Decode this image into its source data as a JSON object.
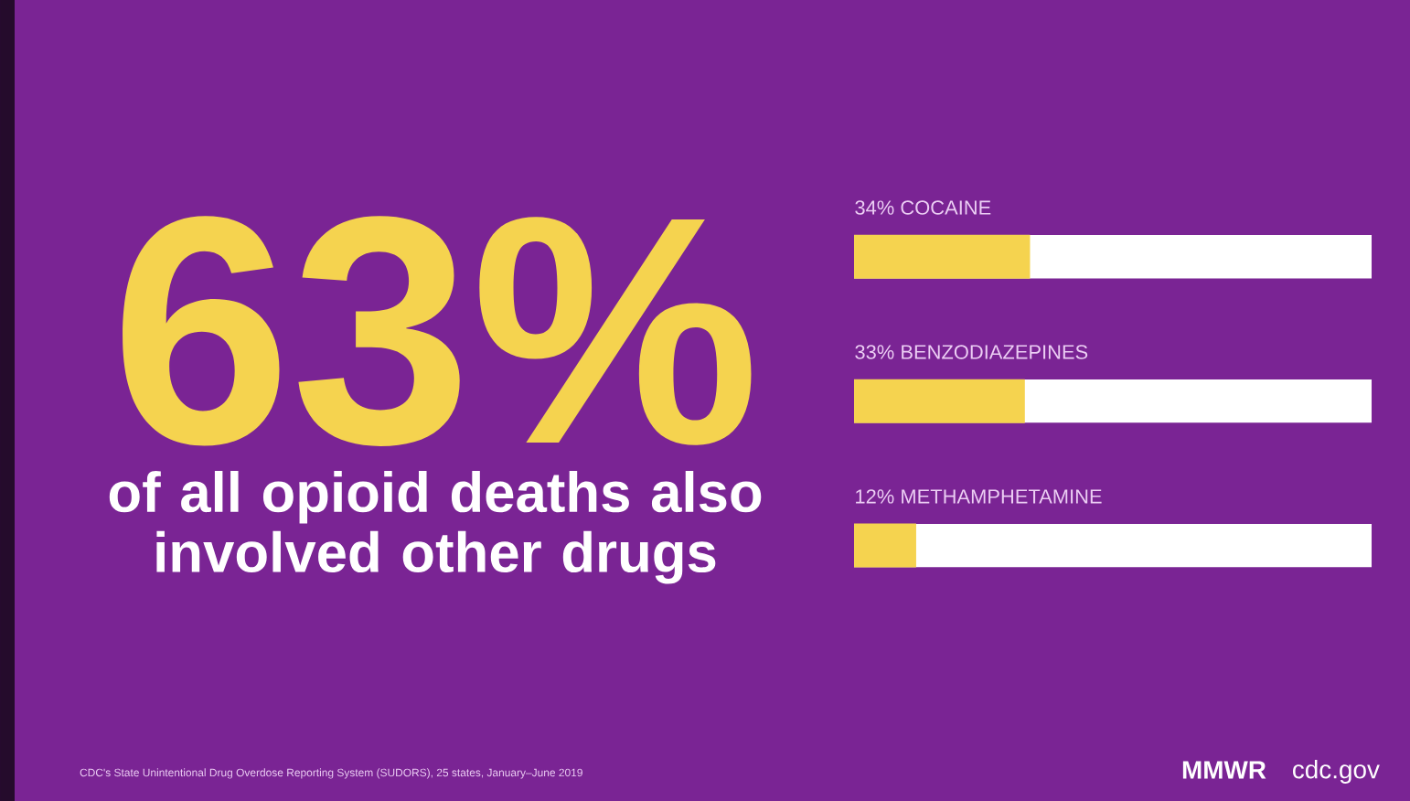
{
  "chart_data": {
    "type": "bar",
    "orientation": "horizontal",
    "title": "63%",
    "subtitle": "of all opioid deaths also involved other drugs",
    "categories": [
      "COCAINE",
      "BENZODIAZEPINES",
      "METHAMPHETAMINE"
    ],
    "values": [
      34,
      33,
      12
    ],
    "value_labels": [
      "34%",
      "33%",
      "12%"
    ],
    "color": "#f5d34f",
    "xlim": [
      0,
      100
    ],
    "tick_labels": false,
    "annotations": [
      "CDC's State Unintentional Drug Overdose Reporting System (SUDORS), 25 states, January–June 2019",
      "MMWR",
      "cdc.gov"
    ]
  }
}
